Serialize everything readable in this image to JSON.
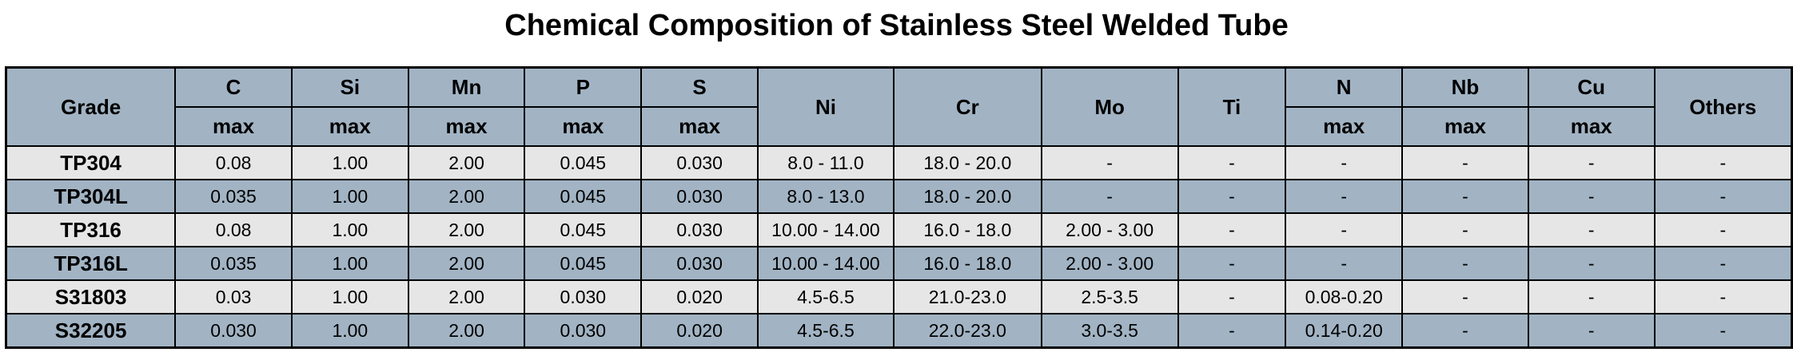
{
  "title": "Chemical Composition of Stainless Steel Welded Tube",
  "headers": {
    "grade": "Grade",
    "c": "C",
    "si": "Si",
    "mn": "Mn",
    "p": "P",
    "s": "S",
    "ni": "Ni",
    "cr": "Cr",
    "mo": "Mo",
    "ti": "Ti",
    "n": "N",
    "nb": "Nb",
    "cu": "Cu",
    "others": "Others",
    "max": "max"
  },
  "rows": [
    {
      "grade": "TP304",
      "c": "0.08",
      "si": "1.00",
      "mn": "2.00",
      "p": "0.045",
      "s": "0.030",
      "ni": "8.0 - 11.0",
      "cr": "18.0 - 20.0",
      "mo": "-",
      "ti": "-",
      "n": "-",
      "nb": "-",
      "cu": "-",
      "others": "-"
    },
    {
      "grade": "TP304L",
      "c": "0.035",
      "si": "1.00",
      "mn": "2.00",
      "p": "0.045",
      "s": "0.030",
      "ni": "8.0 - 13.0",
      "cr": "18.0 - 20.0",
      "mo": "-",
      "ti": "-",
      "n": "-",
      "nb": "-",
      "cu": "-",
      "others": "-"
    },
    {
      "grade": "TP316",
      "c": "0.08",
      "si": "1.00",
      "mn": "2.00",
      "p": "0.045",
      "s": "0.030",
      "ni": "10.00 - 14.00",
      "cr": "16.0 - 18.0",
      "mo": "2.00 - 3.00",
      "ti": "-",
      "n": "-",
      "nb": "-",
      "cu": "-",
      "others": "-"
    },
    {
      "grade": "TP316L",
      "c": "0.035",
      "si": "1.00",
      "mn": "2.00",
      "p": "0.045",
      "s": "0.030",
      "ni": "10.00 - 14.00",
      "cr": "16.0 - 18.0",
      "mo": "2.00 - 3.00",
      "ti": "-",
      "n": "-",
      "nb": "-",
      "cu": "-",
      "others": "-"
    },
    {
      "grade": "S31803",
      "c": "0.03",
      "si": "1.00",
      "mn": "2.00",
      "p": "0.030",
      "s": "0.020",
      "ni": "4.5-6.5",
      "cr": "21.0-23.0",
      "mo": "2.5-3.5",
      "ti": "-",
      "n": "0.08-0.20",
      "nb": "-",
      "cu": "-",
      "others": "-"
    },
    {
      "grade": "S32205",
      "c": "0.030",
      "si": "1.00",
      "mn": "2.00",
      "p": "0.030",
      "s": "0.020",
      "ni": "4.5-6.5",
      "cr": "22.0-23.0",
      "mo": "3.0-3.5",
      "ti": "-",
      "n": "0.14-0.20",
      "nb": "-",
      "cu": "-",
      "others": "-"
    }
  ],
  "colors": {
    "header_bg": "#a2b4c4",
    "row_light": "#e6e6e6",
    "row_blue": "#a2b4c4",
    "border": "#000000"
  }
}
